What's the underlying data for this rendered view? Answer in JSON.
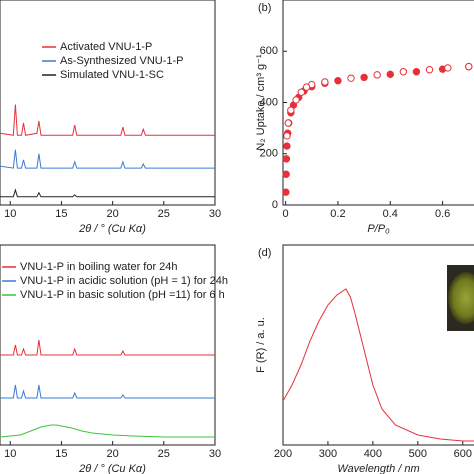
{
  "chart_data": [
    {
      "type": "line",
      "xlabel": "2θ / ° (Cu Kα)",
      "xlim": [
        9,
        30
      ],
      "xticks": [
        10,
        15,
        20,
        25,
        30
      ],
      "ylim": [
        0,
        100
      ],
      "legend": "upper-right",
      "series": [
        {
          "name": "Activated VNU-1-P",
          "color": "#e8303a",
          "x": [
            9,
            10.3,
            10.5,
            10.7,
            11.1,
            11.3,
            11.5,
            12.6,
            12.8,
            13.0,
            16.1,
            16.3,
            16.5,
            20.8,
            21,
            21.2,
            22.8,
            23,
            23.2,
            30
          ],
          "values": [
            35,
            34,
            49,
            34,
            34,
            40,
            34,
            35,
            41,
            34,
            34,
            39,
            34,
            34,
            38,
            34,
            34,
            37,
            34,
            34
          ]
        },
        {
          "name": "As-Synthesized VNU-1-P",
          "color": "#3a7bd5",
          "x": [
            9,
            10.3,
            10.5,
            10.7,
            11.1,
            11.3,
            11.5,
            12.6,
            12.8,
            13.0,
            16.1,
            16.3,
            16.5,
            20.8,
            21,
            21.2,
            22.8,
            23,
            23.2,
            30
          ],
          "values": [
            19,
            18,
            27,
            18,
            18,
            22,
            18,
            18,
            25,
            18,
            18,
            21,
            18,
            18,
            21,
            18,
            18,
            20,
            18,
            18
          ]
        },
        {
          "name": "Simulated VNU-1-SC",
          "color": "#222222",
          "x": [
            9,
            10.3,
            10.5,
            10.7,
            12.6,
            12.8,
            13.0,
            16.1,
            16.3,
            16.5,
            30
          ],
          "values": [
            4,
            4,
            7.3,
            4,
            4,
            6,
            4,
            4,
            5,
            4,
            4
          ]
        }
      ]
    },
    {
      "type": "scatter",
      "label": "(b)",
      "xlabel": "P/P₀",
      "ylabel": "N₂ Uptake / cm³ g⁻¹",
      "xlim": [
        -0.01,
        0.72
      ],
      "xticks": [
        0,
        0.2,
        0.4,
        0.6
      ],
      "ylim": [
        0,
        800
      ],
      "yticks": [
        0,
        200,
        400,
        600
      ],
      "series": [
        {
          "color": "#e8303a",
          "filled": true,
          "x": [
            0.001,
            0.002,
            0.003,
            0.005,
            0.008,
            0.012,
            0.02,
            0.03,
            0.05,
            0.07,
            0.1,
            0.15,
            0.2,
            0.3,
            0.4,
            0.5,
            0.6,
            0.7
          ],
          "values": [
            50,
            120,
            180,
            230,
            280,
            320,
            360,
            390,
            420,
            445,
            462,
            475,
            485,
            498,
            510,
            520,
            530,
            540
          ]
        },
        {
          "color": "#e8303a",
          "filled": false,
          "x": [
            0.7,
            0.62,
            0.55,
            0.45,
            0.35,
            0.25,
            0.15,
            0.1,
            0.08,
            0.06,
            0.04,
            0.02,
            0.01,
            0.005
          ],
          "values": [
            540,
            535,
            528,
            520,
            508,
            495,
            480,
            470,
            460,
            440,
            410,
            370,
            320,
            270
          ]
        }
      ]
    },
    {
      "type": "line",
      "xlabel": "2θ / ° (Cu Kα)",
      "xlim": [
        9,
        30
      ],
      "xticks": [
        10,
        15,
        20,
        25,
        30
      ],
      "ylim": [
        0,
        100
      ],
      "legend": "upper-left",
      "series": [
        {
          "name": "VNU-1-P in boiling water for 24h",
          "color": "#e8303a",
          "x": [
            9,
            10.3,
            10.5,
            10.7,
            11.1,
            11.3,
            11.5,
            12.6,
            12.8,
            13.0,
            16.1,
            16.3,
            16.5,
            20.8,
            21,
            21.2,
            30
          ],
          "values": [
            45,
            45,
            50,
            45,
            45,
            48,
            45,
            45,
            52.5,
            45,
            45,
            48,
            45,
            45,
            47,
            45,
            45
          ]
        },
        {
          "name": "VNU-1-P in acidic solution (pH = 1) for 24h",
          "color": "#3a7bd5",
          "x": [
            9,
            10.3,
            10.5,
            10.7,
            11.1,
            11.3,
            11.5,
            12.6,
            12.8,
            13.0,
            16.1,
            16.3,
            16.5,
            20.8,
            21,
            21.2,
            30
          ],
          "values": [
            23.5,
            23.5,
            30,
            23.5,
            23.5,
            27,
            23.5,
            23.5,
            30,
            23.5,
            23.5,
            26,
            23.5,
            23.5,
            25,
            23.5,
            23.5
          ]
        },
        {
          "name": "VNU-1-P in basic solution (pH =11) for 6 h",
          "color": "#3cc43c",
          "x": [
            9,
            11,
            12,
            13,
            14,
            14.5,
            15,
            16,
            17,
            18,
            20,
            22,
            25,
            30
          ],
          "values": [
            4,
            5,
            7,
            9,
            10,
            10,
            9.5,
            8.5,
            7,
            6,
            5,
            4.5,
            4,
            4
          ]
        }
      ]
    },
    {
      "type": "line",
      "label": "(d)",
      "xlabel": "Wavelength / nm",
      "ylabel": "F (R) / a. u.",
      "xlim": [
        200,
        625
      ],
      "xticks": [
        200,
        300,
        400,
        500,
        600
      ],
      "ylim": [
        0,
        100
      ],
      "series": [
        {
          "color": "#e8303a",
          "x": [
            200,
            220,
            240,
            260,
            280,
            300,
            320,
            340,
            350,
            360,
            380,
            400,
            420,
            450,
            500,
            550,
            600,
            625
          ],
          "values": [
            22,
            30,
            40,
            52,
            62,
            70,
            75,
            78,
            74,
            66,
            48,
            30,
            18,
            10,
            5,
            3,
            2,
            2
          ]
        }
      ]
    }
  ]
}
